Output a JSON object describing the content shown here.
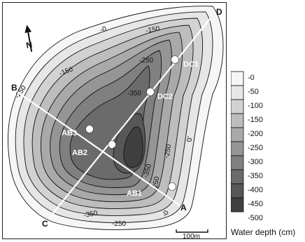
{
  "map": {
    "north_label": "N",
    "scale_label": "100m",
    "transects": [
      {
        "start": "A",
        "end": "B"
      },
      {
        "start": "C",
        "end": "D"
      }
    ],
    "sampling_points": [
      "AB1",
      "AB2",
      "AB3",
      "DC1",
      "DC2"
    ],
    "contour_labels": [
      "-0",
      "-150",
      "-250",
      "-150",
      "-250",
      "-350",
      "-0",
      "-250",
      "-350",
      "-250",
      "-350",
      "-250",
      "-0"
    ]
  },
  "legend": {
    "title": "Water depth (cm)",
    "levels": [
      "-0",
      "-50",
      "-100",
      "-150",
      "-200",
      "-250",
      "-300",
      "-350",
      "-400",
      "-450",
      "-500"
    ],
    "colors": [
      "#f6f6f6",
      "#e6e6e6",
      "#d2d2d2",
      "#bdbdbd",
      "#a9a9a9",
      "#959595",
      "#808080",
      "#6b6b6b",
      "#575757",
      "#404040"
    ]
  }
}
